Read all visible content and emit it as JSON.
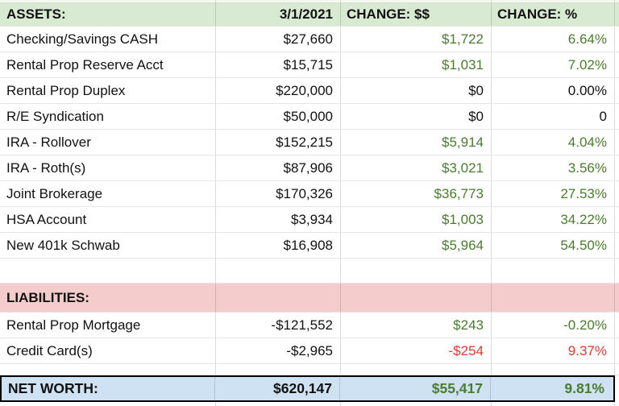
{
  "header": {
    "assets_label": "ASSETS:",
    "date_label": "3/1/2021",
    "change_dollars_label": "CHANGE: $$",
    "change_percent_label": "CHANGE: %"
  },
  "assets": [
    {
      "name": "Checking/Savings CASH",
      "value": "$27,660",
      "change": "$1,722",
      "change_tone": "green",
      "pct": "6.64%",
      "pct_tone": "green"
    },
    {
      "name": "Rental Prop Reserve Acct",
      "value": "$15,715",
      "change": "$1,031",
      "change_tone": "green",
      "pct": "7.02%",
      "pct_tone": "green"
    },
    {
      "name": "Rental Prop Duplex",
      "value": "$220,000",
      "change": "$0",
      "change_tone": "black",
      "pct": "0.00%",
      "pct_tone": "black"
    },
    {
      "name": "R/E Syndication",
      "value": "$50,000",
      "change": "$0",
      "change_tone": "black",
      "pct": "0",
      "pct_tone": "black"
    },
    {
      "name": "IRA - Rollover",
      "value": "$152,215",
      "change": "$5,914",
      "change_tone": "green",
      "pct": "4.04%",
      "pct_tone": "green"
    },
    {
      "name": "IRA - Roth(s)",
      "value": "$87,906",
      "change": "$3,021",
      "change_tone": "green",
      "pct": "3.56%",
      "pct_tone": "green"
    },
    {
      "name": "Joint Brokerage",
      "value": "$170,326",
      "change": "$36,773",
      "change_tone": "green",
      "pct": "27.53%",
      "pct_tone": "green"
    },
    {
      "name": "HSA Account",
      "value": "$3,934",
      "change": "$1,003",
      "change_tone": "green",
      "pct": "34.22%",
      "pct_tone": "green"
    },
    {
      "name": "New 401k Schwab",
      "value": "$16,908",
      "change": "$5,964",
      "change_tone": "green",
      "pct": "54.50%",
      "pct_tone": "green"
    }
  ],
  "liabilities_section": {
    "label": "LIABILITIES:",
    "items": [
      {
        "name": "Rental Prop Mortgage",
        "value": "-$121,552",
        "change": "$243",
        "change_tone": "green",
        "pct": "-0.20%",
        "pct_tone": "green"
      },
      {
        "name": "Credit Card(s)",
        "value": "-$2,965",
        "change": "-$254",
        "change_tone": "red",
        "pct": "9.37%",
        "pct_tone": "red"
      }
    ]
  },
  "net_worth": {
    "label": "NET WORTH:",
    "value": "$620,147",
    "change": "$55,417",
    "change_tone": "green",
    "pct": "9.81%",
    "pct_tone": "green"
  },
  "colors": {
    "green_text": "#4a7b2e",
    "red_text": "#e6372d",
    "header_bg": "#d9ead3",
    "liabilities_bg": "#f4cccc",
    "net_worth_bg": "#cfe2f3"
  }
}
